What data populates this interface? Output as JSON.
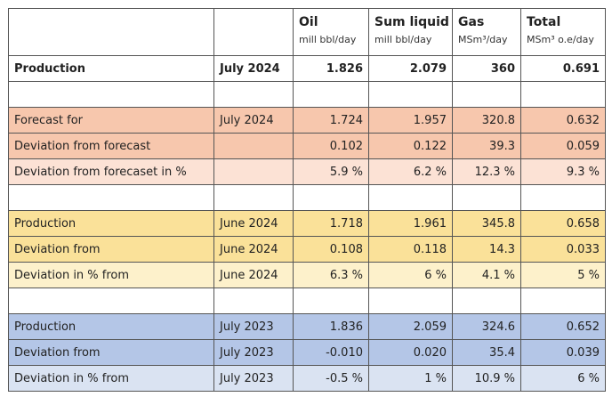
{
  "header": {
    "columns": [
      {
        "title": "",
        "unit": ""
      },
      {
        "title": "",
        "unit": ""
      },
      {
        "title": "Oil",
        "unit": "mill bbl/day"
      },
      {
        "title": "Sum liquid",
        "unit": "mill bbl/day"
      },
      {
        "title": "Gas",
        "unit": "MSm³/day"
      },
      {
        "title": "Total",
        "unit": "MSm³ o.e/day"
      }
    ]
  },
  "rows": [
    {
      "label": "Production",
      "period": "July 2024",
      "oil": "1.826",
      "liquid": "2.079",
      "gas": "360",
      "total": "0.691"
    },
    {
      "label": "Forecast for",
      "period": "July 2024",
      "oil": "1.724",
      "liquid": "1.957",
      "gas": "320.8",
      "total": "0.632"
    },
    {
      "label": "Deviation from forecast",
      "period": "",
      "oil": "0.102",
      "liquid": "0.122",
      "gas": "39.3",
      "total": "0.059"
    },
    {
      "label": "Deviation from forecaset in %",
      "period": "",
      "oil": "5.9 %",
      "liquid": "6.2 %",
      "gas": "12.3 %",
      "total": "9.3 %"
    },
    {
      "label": "Production",
      "period": "June 2024",
      "oil": "1.718",
      "liquid": "1.961",
      "gas": "345.8",
      "total": "0.658"
    },
    {
      "label": "Deviation from",
      "period": "June 2024",
      "oil": "0.108",
      "liquid": "0.118",
      "gas": "14.3",
      "total": "0.033"
    },
    {
      "label": "Deviation in % from",
      "period": "June 2024",
      "oil": "6.3 %",
      "liquid": "6 %",
      "gas": "4.1 %",
      "total": "5 %"
    },
    {
      "label": "Production",
      "period": "July 2023",
      "oil": "1.836",
      "liquid": "2.059",
      "gas": "324.6",
      "total": "0.652"
    },
    {
      "label": "Deviation from",
      "period": "July 2023",
      "oil": "-0.010",
      "liquid": "0.020",
      "gas": "35.4",
      "total": "0.039"
    },
    {
      "label": "Deviation in % from",
      "period": "July 2023",
      "oil": "-0.5 %",
      "liquid": "1 %",
      "gas": "10.9 %",
      "total": "6 %"
    }
  ],
  "colors": {
    "orange_dark": "#f7c7ad",
    "orange_light": "#fce2d5",
    "yellow_dark": "#fae199",
    "yellow_light": "#fdf1cb",
    "blue_dark": "#b4c6e7",
    "blue_light": "#dae3f2"
  }
}
